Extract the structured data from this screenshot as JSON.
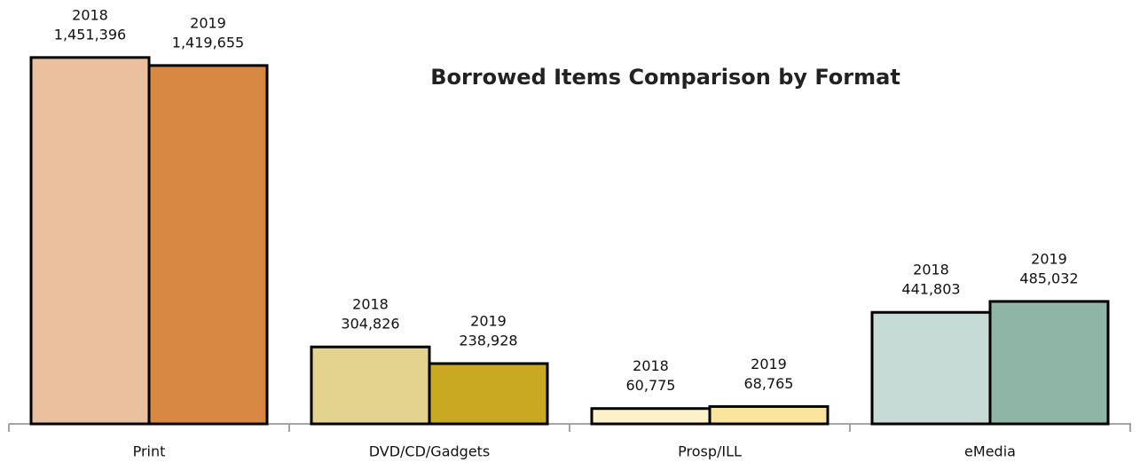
{
  "chart_data": {
    "type": "bar",
    "title": "Borrowed Items Comparison by Format",
    "categories": [
      "Print",
      "DVD/CD/Gadgets",
      "Prosp/ILL",
      "eMedia"
    ],
    "series": [
      {
        "name": "2018",
        "values": [
          1451396,
          304826,
          60775,
          441803
        ],
        "value_labels": [
          "1,451,396",
          "304,826",
          "60,775",
          "441,803"
        ],
        "colors": [
          "#ebc09e",
          "#e3d38f",
          "#fdf1c8",
          "#c6dbd6"
        ]
      },
      {
        "name": "2019",
        "values": [
          1419655,
          238928,
          68765,
          485032
        ],
        "value_labels": [
          "1,419,655",
          "238,928",
          "68,765",
          "485,032"
        ],
        "colors": [
          "#d98843",
          "#c9a822",
          "#fbe49b",
          "#8eb5a6"
        ]
      }
    ],
    "ylim": [
      0,
      1500000
    ]
  }
}
